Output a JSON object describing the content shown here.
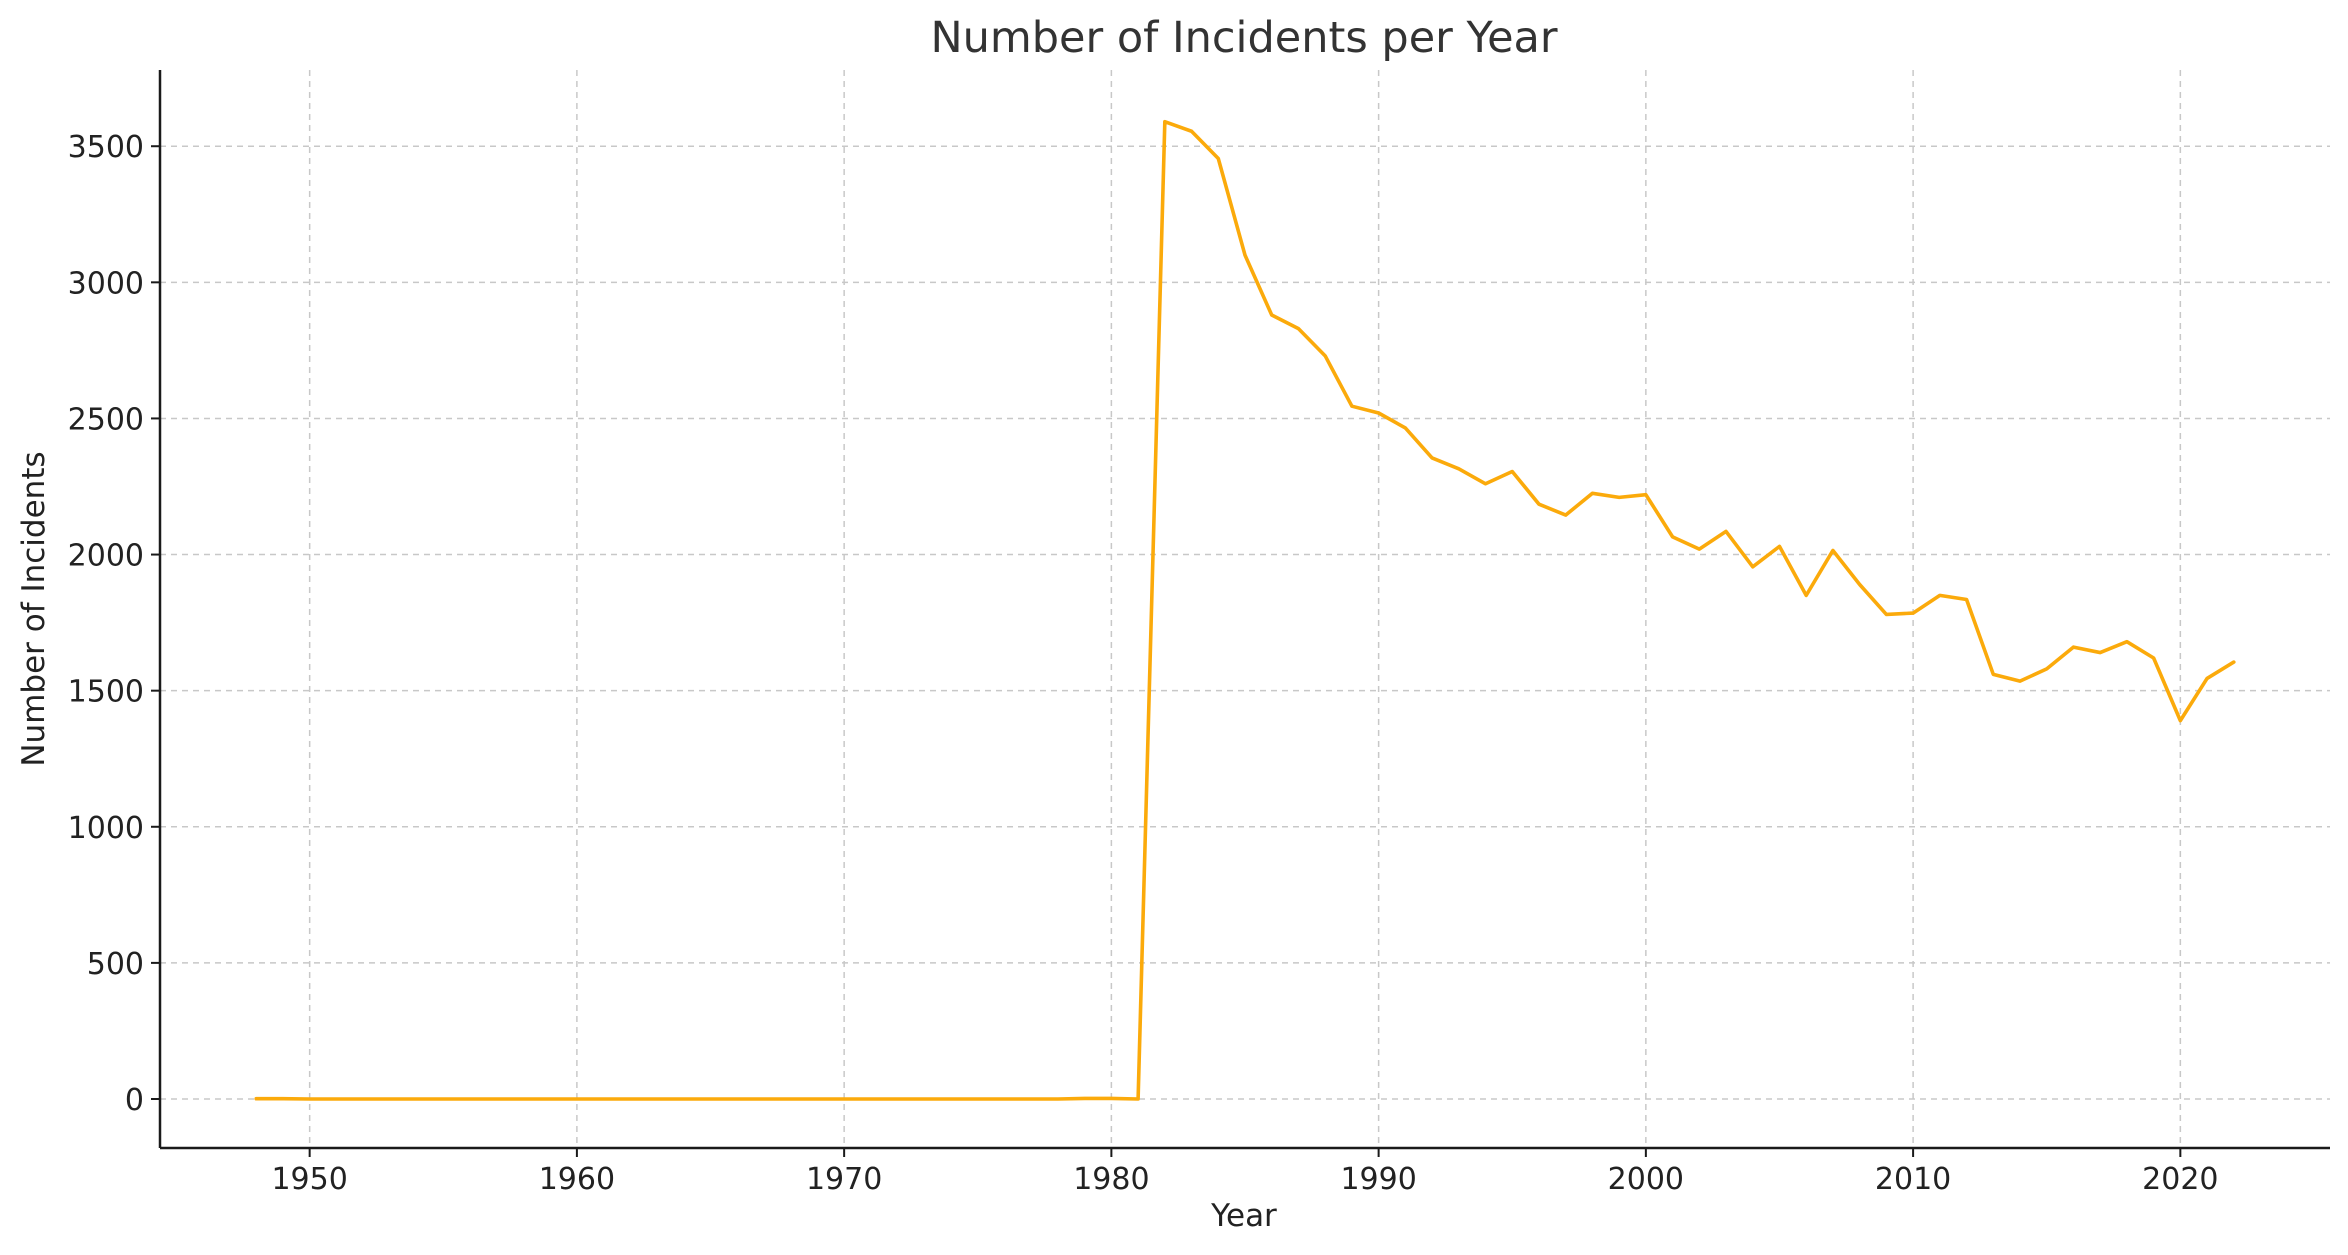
{
  "chart_data": {
    "type": "line",
    "title": "Number of Incidents per Year",
    "xlabel": "Year",
    "ylabel": "Number of Incidents",
    "xlim": [
      1944.4,
      2025.6
    ],
    "ylim": [
      -180,
      3780
    ],
    "xticks": [
      1950,
      1960,
      1970,
      1980,
      1990,
      2000,
      2010,
      2020
    ],
    "yticks": [
      0,
      500,
      1000,
      1500,
      2000,
      2500,
      3000,
      3500
    ],
    "grid": true,
    "series": [
      {
        "color": "#fbaa0b",
        "x": [
          1948,
          1949,
          1950,
          1951,
          1952,
          1953,
          1954,
          1955,
          1956,
          1957,
          1958,
          1959,
          1960,
          1961,
          1962,
          1963,
          1964,
          1965,
          1966,
          1967,
          1968,
          1969,
          1970,
          1971,
          1972,
          1973,
          1974,
          1975,
          1976,
          1977,
          1978,
          1979,
          1980,
          1981,
          1982,
          1983,
          1984,
          1985,
          1986,
          1987,
          1988,
          1989,
          1990,
          1991,
          1992,
          1993,
          1994,
          1995,
          1996,
          1997,
          1998,
          1999,
          2000,
          2001,
          2002,
          2003,
          2004,
          2005,
          2006,
          2007,
          2008,
          2009,
          2010,
          2011,
          2012,
          2013,
          2014,
          2015,
          2016,
          2017,
          2018,
          2019,
          2020,
          2021,
          2022
        ],
        "y": [
          1,
          1,
          0,
          0,
          0,
          0,
          0,
          0,
          0,
          0,
          0,
          0,
          0,
          0,
          0,
          0,
          0,
          0,
          0,
          0,
          0,
          0,
          0,
          0,
          0,
          0,
          0,
          0,
          0,
          0,
          0,
          2,
          2,
          0,
          3590,
          3555,
          3455,
          3100,
          2880,
          2830,
          2730,
          2545,
          2520,
          2465,
          2355,
          2315,
          2260,
          2305,
          2185,
          2145,
          2225,
          2210,
          2220,
          2065,
          2020,
          2085,
          1955,
          2030,
          1850,
          2015,
          1890,
          1780,
          1785,
          1850,
          1835,
          1560,
          1535,
          1580,
          1660,
          1640,
          1680,
          1620,
          1390,
          1545,
          1605
        ]
      }
    ]
  }
}
